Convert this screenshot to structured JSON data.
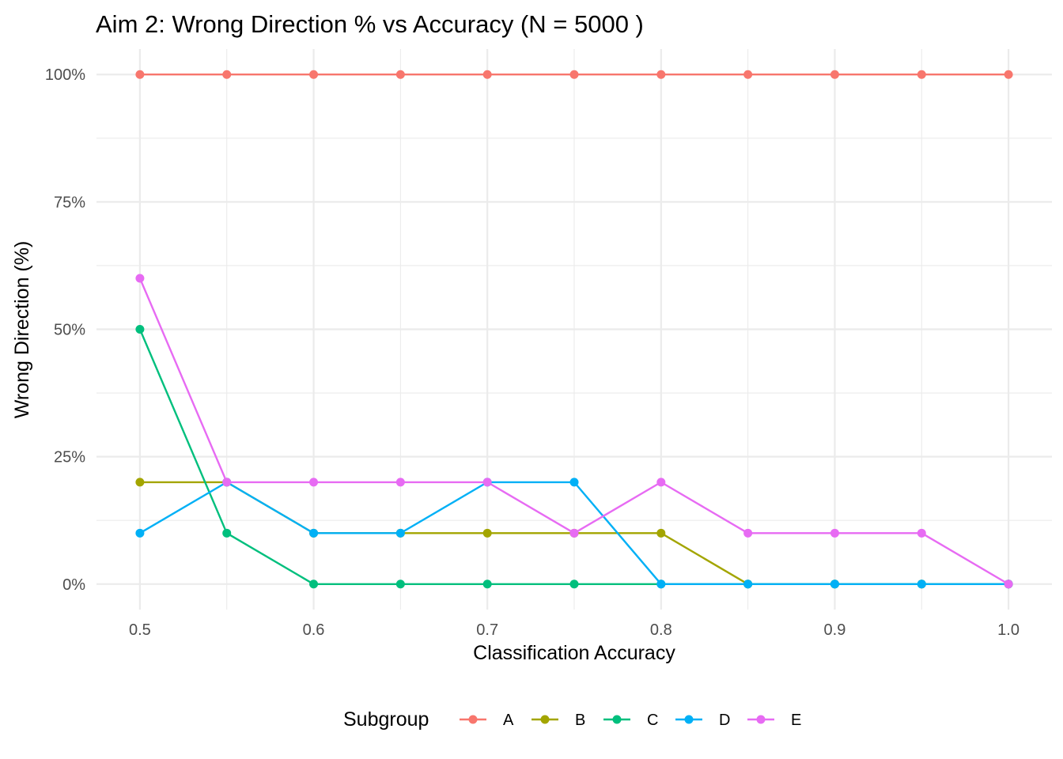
{
  "chart_data": {
    "type": "line",
    "title": "Aim 2: Wrong Direction % vs Accuracy (N = 5000 )",
    "xlabel": "Classification Accuracy",
    "ylabel": "Wrong Direction (%)",
    "x": [
      0.5,
      0.55,
      0.6,
      0.65,
      0.7,
      0.75,
      0.8,
      0.85,
      0.9,
      0.95,
      1.0
    ],
    "xlim": [
      0.475,
      1.025
    ],
    "ylim": [
      -0.05,
      1.05
    ],
    "x_ticks": [
      0.5,
      0.6,
      0.7,
      0.8,
      0.9,
      1.0
    ],
    "x_tick_labels": [
      "0.5",
      "0.6",
      "0.7",
      "0.8",
      "0.9",
      "1.0"
    ],
    "y_ticks": [
      0,
      0.25,
      0.5,
      0.75,
      1.0
    ],
    "y_tick_labels": [
      "0%",
      "25%",
      "50%",
      "75%",
      "100%"
    ],
    "grid": true,
    "legend_title": "Subgroup",
    "legend_position": "bottom",
    "series": [
      {
        "name": "A",
        "color": "#F8766D",
        "values": [
          1,
          1,
          1,
          1,
          1,
          1,
          1,
          1,
          1,
          1,
          1
        ]
      },
      {
        "name": "B",
        "color": "#A3A500",
        "values": [
          0.2,
          0.2,
          0.1,
          0.1,
          0.1,
          0.1,
          0.1,
          0,
          0,
          0,
          0
        ]
      },
      {
        "name": "C",
        "color": "#00BF7D",
        "values": [
          0.5,
          0.1,
          0,
          0,
          0,
          0,
          0,
          0,
          0,
          0,
          0
        ]
      },
      {
        "name": "D",
        "color": "#00B0F6",
        "values": [
          0.1,
          0.2,
          0.1,
          0.1,
          0.2,
          0.2,
          0,
          0,
          0,
          0,
          0
        ]
      },
      {
        "name": "E",
        "color": "#E76BF3",
        "values": [
          0.6,
          0.2,
          0.2,
          0.2,
          0.2,
          0.1,
          0.2,
          0.1,
          0.1,
          0.1,
          0
        ]
      }
    ]
  }
}
